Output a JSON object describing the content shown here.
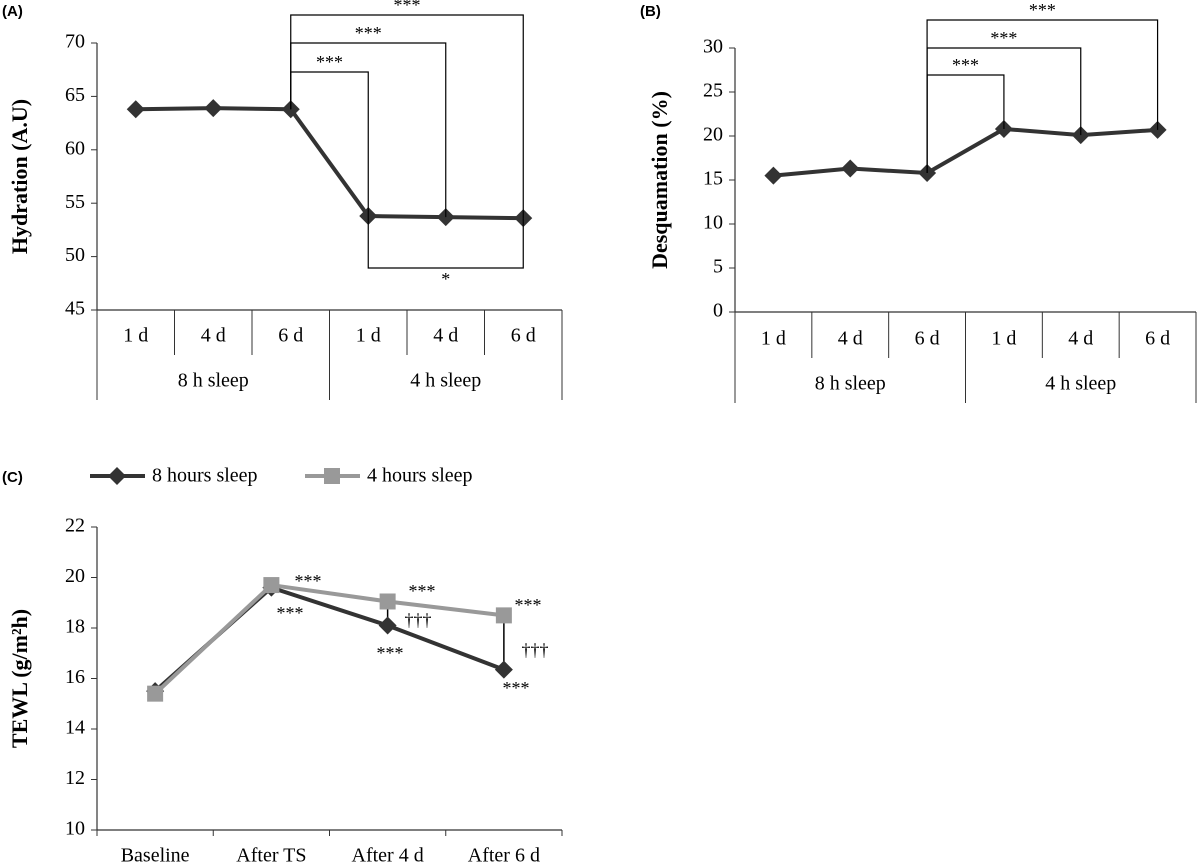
{
  "chart_data": [
    {
      "type": "line",
      "panel_label": "(A)",
      "y_label": "Hydration (A.U)",
      "categories": [
        "1 d",
        "4 d",
        "6 d",
        "1 d",
        "4 d",
        "6 d"
      ],
      "groups": [
        "8 h sleep",
        "4 h sleep"
      ],
      "values": [
        63.8,
        63.9,
        63.8,
        53.8,
        53.7,
        53.6
      ],
      "color": "#333333",
      "ylim": [
        45,
        70
      ],
      "yticks": [
        45,
        50,
        55,
        60,
        65,
        70
      ],
      "annotations": [
        "***",
        "***",
        "***",
        "*"
      ]
    },
    {
      "type": "line",
      "panel_label": "(B)",
      "y_label": "Desquamation  (%)",
      "categories": [
        "1 d",
        "4 d",
        "6 d",
        "1 d",
        "4 d",
        "6 d"
      ],
      "groups": [
        "8 h sleep",
        "4 h sleep"
      ],
      "values": [
        15.5,
        16.3,
        15.8,
        20.8,
        20.1,
        20.7
      ],
      "color": "#333333",
      "ylim": [
        0,
        30
      ],
      "yticks": [
        0,
        5,
        10,
        15,
        20,
        25,
        30
      ],
      "annotations": [
        "***",
        "***",
        "***"
      ]
    },
    {
      "type": "multiline",
      "panel_label": "(C)",
      "y_label": "TEWL (g/m²h)",
      "categories": [
        "Baseline",
        "After TS",
        "After 4 d",
        "After 6 d"
      ],
      "series": [
        {
          "name": "8 hours sleep",
          "color": "#333333",
          "values": [
            15.5,
            19.6,
            18.1,
            16.35
          ]
        },
        {
          "name": "4 hours sleep",
          "color": "#999999",
          "values": [
            15.4,
            19.7,
            19.05,
            18.5
          ]
        }
      ],
      "ylim": [
        10,
        22
      ],
      "yticks": [
        10,
        12,
        14,
        16,
        18,
        20,
        22
      ],
      "annotations": [
        "***",
        "***",
        "***",
        "***",
        "†††",
        "***",
        "†††",
        "***"
      ]
    }
  ]
}
